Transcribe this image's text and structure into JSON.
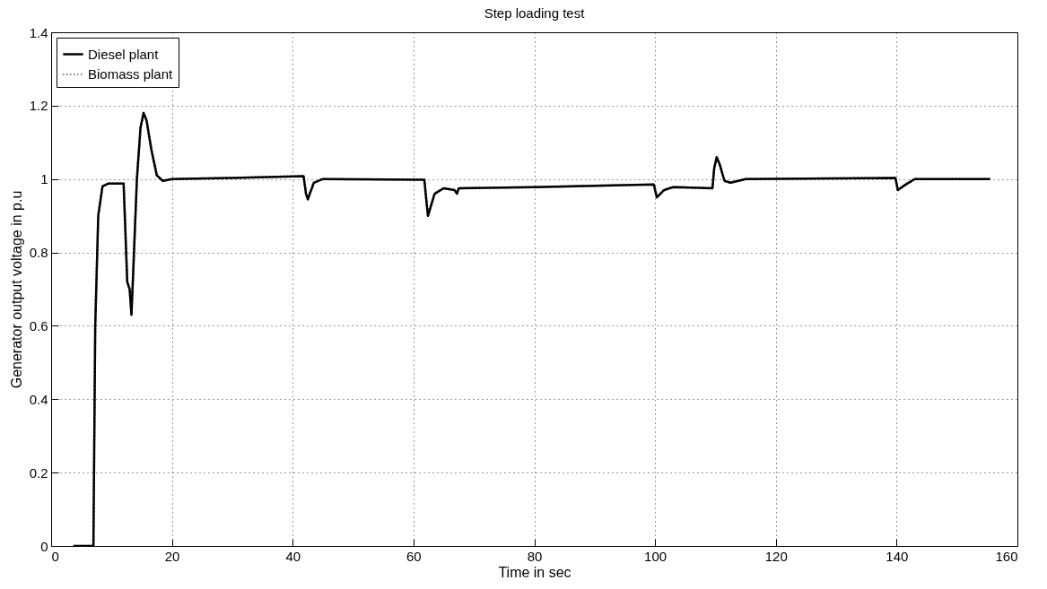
{
  "chart_data": {
    "type": "line",
    "title": "Step loading test",
    "xlabel": "Time in sec",
    "ylabel": "Generator output voltage in p.u",
    "x": [
      3.7,
      7,
      7.3,
      7.8,
      8.5,
      9.5,
      12,
      12.2,
      12.6,
      13,
      13.3,
      13.6,
      14.2,
      14.8,
      15.3,
      15.8,
      16.6,
      17.5,
      18.5,
      20,
      30,
      41.8,
      42.2,
      42.5,
      43.5,
      45,
      61.8,
      62.2,
      62.4,
      63.5,
      65,
      66.8,
      67.2,
      67.5,
      80,
      99.8,
      100.3,
      101.5,
      103,
      109.5,
      109.8,
      110.2,
      110.7,
      111.5,
      112.5,
      115,
      139.8,
      140.2,
      141.5,
      143,
      155.5
    ],
    "series": [
      {
        "name": "Diesel plant",
        "color": "#000000",
        "line_style": "solid",
        "values": [
          0,
          0,
          0.6,
          0.9,
          0.98,
          0.988,
          0.988,
          0.9,
          0.72,
          0.7,
          0.63,
          0.75,
          1.0,
          1.14,
          1.18,
          1.16,
          1.08,
          1.01,
          0.995,
          1.0,
          1.003,
          1.008,
          0.96,
          0.945,
          0.99,
          1.0,
          0.998,
          0.93,
          0.9,
          0.96,
          0.975,
          0.97,
          0.96,
          0.975,
          0.978,
          0.985,
          0.95,
          0.97,
          0.978,
          0.975,
          1.03,
          1.06,
          1.04,
          0.995,
          0.99,
          1.0,
          1.003,
          0.97,
          0.985,
          1.0,
          1.0
        ]
      },
      {
        "name": "Biomass plant",
        "color": "#000000",
        "line_style": "dotted",
        "values": [
          0,
          0,
          0.6,
          0.9,
          0.98,
          0.988,
          0.988,
          0.9,
          0.72,
          0.7,
          0.63,
          0.75,
          1.0,
          1.14,
          1.18,
          1.16,
          1.08,
          1.01,
          0.995,
          1.0,
          1.003,
          1.008,
          0.96,
          0.945,
          0.99,
          1.0,
          0.998,
          0.93,
          0.9,
          0.96,
          0.975,
          0.97,
          0.96,
          0.975,
          0.978,
          0.985,
          0.95,
          0.97,
          0.978,
          0.975,
          1.03,
          1.06,
          1.04,
          0.995,
          0.99,
          1.0,
          1.003,
          0.97,
          0.985,
          1.0,
          1.0
        ]
      }
    ],
    "xlim": [
      0,
      160
    ],
    "xticks": [
      0,
      20,
      40,
      60,
      80,
      100,
      120,
      140,
      160
    ],
    "ylim": [
      0,
      1.4
    ],
    "yticks": [
      0,
      0.2,
      0.4,
      0.6,
      0.8,
      1,
      1.2,
      1.4
    ],
    "grid": true,
    "legend": "top left",
    "marker": "none"
  }
}
